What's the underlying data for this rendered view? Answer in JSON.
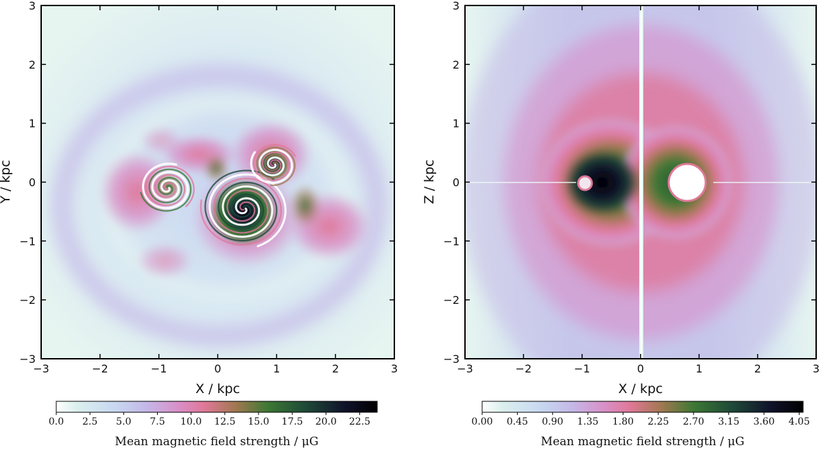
{
  "chart_data": [
    {
      "type": "heatmap",
      "panel": "left",
      "xlabel": "X / kpc",
      "ylabel": "Y / kpc",
      "xlim": [
        -3,
        3
      ],
      "ylim": [
        -3,
        3
      ],
      "xticks": [
        -3,
        -2,
        -1,
        0,
        1,
        2,
        3
      ],
      "yticks": [
        -3,
        -2,
        -1,
        0,
        1,
        2,
        3
      ],
      "xtick_labels": [
        "−3",
        "−2",
        "−1",
        "0",
        "1",
        "2",
        "3"
      ],
      "ytick_labels": [
        "−3",
        "−2",
        "−1",
        "0",
        "1",
        "2",
        "3"
      ],
      "colorbar": {
        "label": "Mean magnetic field strength  /  μG",
        "min": 0.0,
        "max": 23.8,
        "ticks": [
          0.0,
          2.5,
          5.0,
          7.5,
          10.0,
          12.5,
          15.0,
          17.5,
          20.0,
          22.5
        ],
        "tick_labels": [
          "0.0",
          "2.5",
          "5.0",
          "7.5",
          "10.0",
          "12.5",
          "15.0",
          "17.5",
          "20.0",
          "22.5"
        ]
      },
      "features": {
        "spiral_centers_kpc": [
          [
            0.45,
            -0.45
          ],
          [
            -0.85,
            -0.1
          ],
          [
            0.95,
            0.3
          ]
        ],
        "strongest_field_region_kpc": [
          0.45,
          -0.45
        ]
      }
    },
    {
      "type": "heatmap",
      "panel": "right",
      "xlabel": "X / kpc",
      "ylabel": "Z / kpc",
      "xlim": [
        -3,
        3
      ],
      "ylim": [
        -3,
        3
      ],
      "xticks": [
        -3,
        -2,
        -1,
        0,
        1,
        2,
        3
      ],
      "yticks": [
        -3,
        -2,
        -1,
        0,
        1,
        2,
        3
      ],
      "xtick_labels": [
        "−3",
        "−2",
        "−1",
        "0",
        "1",
        "2",
        "3"
      ],
      "ytick_labels": [
        "−3",
        "−2",
        "−1",
        "0",
        "1",
        "2",
        "3"
      ],
      "colorbar": {
        "label": "Mean magnetic field strength  /  μG",
        "min": 0.0,
        "max": 4.1,
        "ticks": [
          0.0,
          0.45,
          0.9,
          1.35,
          1.8,
          2.25,
          2.7,
          3.15,
          3.6,
          4.05
        ],
        "tick_labels": [
          "0.00",
          "0.45",
          "0.90",
          "1.35",
          "1.80",
          "2.25",
          "2.70",
          "3.15",
          "3.60",
          "4.05"
        ]
      },
      "features": {
        "peak_region_kpc": [
          -0.75,
          0.0
        ],
        "low_field_core_kpc": [
          0.75,
          0.0
        ]
      }
    }
  ],
  "colors": {
    "colormap": [
      "#ffffff",
      "#dcf0ee",
      "#c8d8f0",
      "#c4b8e8",
      "#d890c8",
      "#e07898",
      "#a07850",
      "#3c7834",
      "#1e4838",
      "#10122a",
      "#000000"
    ],
    "frame": "#000000"
  }
}
